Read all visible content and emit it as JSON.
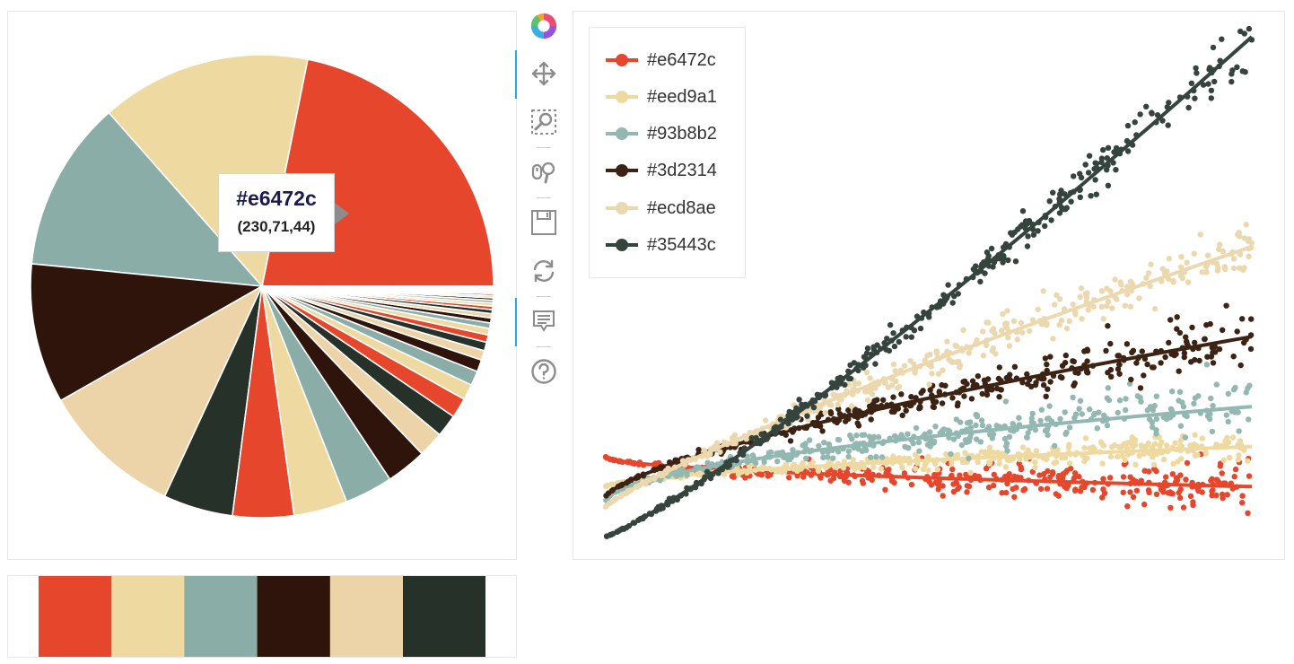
{
  "chart_data": [
    {
      "type": "pie",
      "title": "",
      "palette": [
        "#e6472c",
        "#eed9a1",
        "#93b8b2",
        "#3d2314",
        "#ecd8ae",
        "#35443c"
      ],
      "slice_colors": [
        "#e6472c",
        "#eed9a1",
        "#8aada7",
        "#2e140a",
        "#ecd4a8",
        "#263129"
      ],
      "values": [
        101.5,
        68.2,
        55.5,
        45.4,
        45.9,
        22.6,
        19.8,
        17.4,
        15.6,
        13.1,
        8.3,
        7.3,
        6.5,
        5.1,
        4.7,
        3.9,
        3.1,
        2.8,
        2.4,
        2.1,
        1.8,
        1.6,
        1.4,
        1.3,
        1.1,
        1.0,
        0.9,
        0.8,
        0.7,
        0.6,
        0.5,
        0.5,
        0.4,
        0.4,
        0.3,
        0.3
      ],
      "tooltip": {
        "hex": "#e6472c",
        "rgb": "(230,71,44)"
      }
    },
    {
      "type": "scatter",
      "title": "",
      "xlabel": "",
      "ylabel": "",
      "xlim": [
        0,
        1
      ],
      "ylim": [
        0,
        1
      ],
      "series": [
        {
          "name": "#e6472c",
          "color": "#e6472c",
          "start": 0.16,
          "end": 0.1,
          "shape": 0.5,
          "spread": 0.0,
          "spread_end": 0.05
        },
        {
          "name": "#eed9a1",
          "color": "#eed9a1",
          "start": 0.1,
          "end": 0.18,
          "shape": 0.6,
          "spread": 0.0,
          "spread_end": 0.03
        },
        {
          "name": "#93b8b2",
          "color": "#93b8b2",
          "start": 0.07,
          "end": 0.26,
          "shape": 0.55,
          "spread": 0.0,
          "spread_end": 0.055
        },
        {
          "name": "#3d2314",
          "color": "#3d2314",
          "start": 0.08,
          "end": 0.4,
          "shape": 0.7,
          "spread": 0.0,
          "spread_end": 0.05
        },
        {
          "name": "#ecd8ae",
          "color": "#ecd8ae",
          "start": 0.06,
          "end": 0.58,
          "shape": 0.85,
          "spread": 0.0,
          "spread_end": 0.055
        },
        {
          "name": "#35443c",
          "color": "#35443c",
          "start": 0.0,
          "end": 1.0,
          "shape": 1.15,
          "spread": 0.0,
          "spread_end": 0.05
        }
      ],
      "legend_position": "top-left"
    }
  ],
  "swatches": [
    "#e6472c",
    "#eed9a1",
    "#8aada7",
    "#2e140a",
    "#ecd4a8",
    "#263129"
  ],
  "toolbar": {
    "tools": [
      "logo",
      "pan",
      "box-zoom",
      "wheel-zoom",
      "save",
      "reset",
      "hover",
      "help"
    ]
  }
}
